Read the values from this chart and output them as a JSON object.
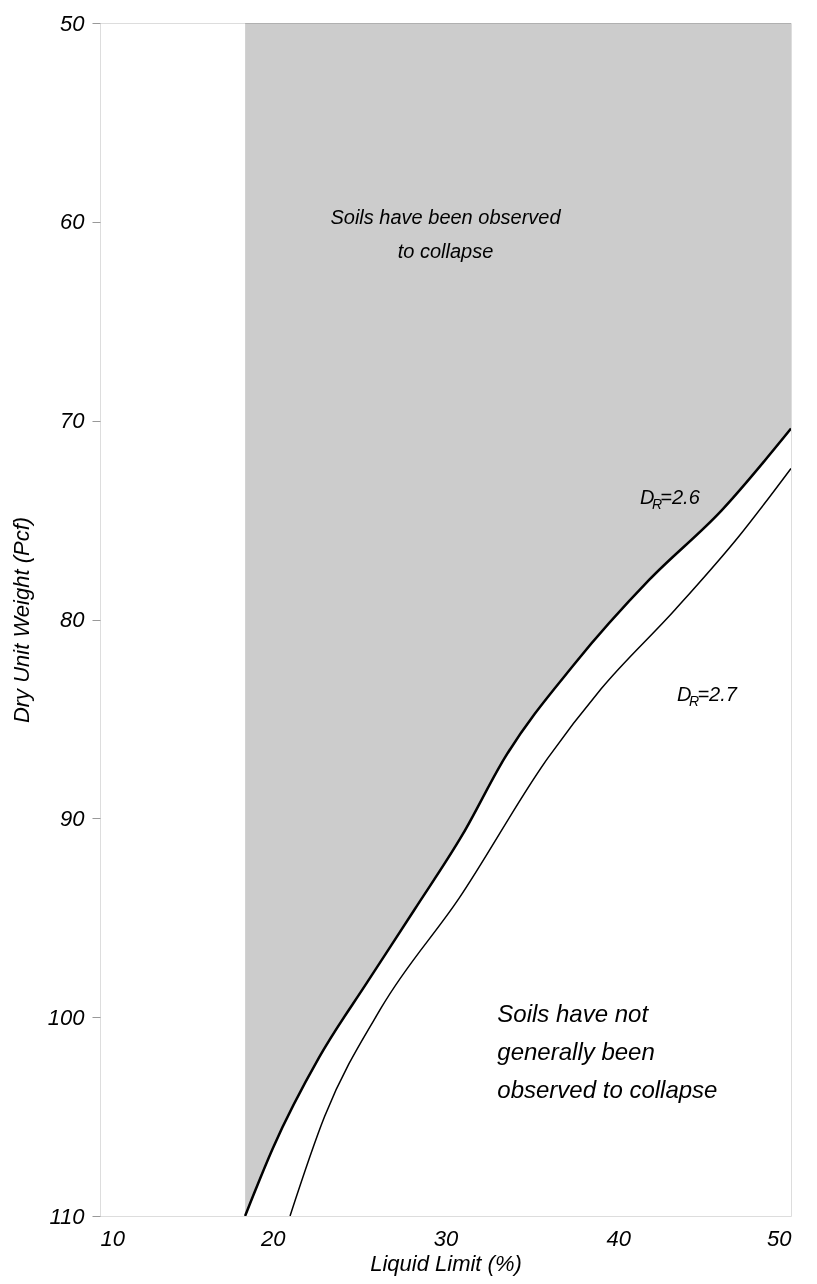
{
  "chart_data": {
    "type": "line",
    "xlabel": "Liquid Limit (%)",
    "ylabel": "Dry Unit Weight (Pcf)",
    "xlim": [
      10,
      50
    ],
    "xticks": [
      10,
      20,
      30,
      40,
      50
    ],
    "ylim": [
      110,
      50
    ],
    "yticks": [
      50,
      60,
      70,
      80,
      90,
      100,
      110
    ],
    "grid": false,
    "marker": "none",
    "line_style": "solid",
    "series": [
      {
        "name": "D$_{R}$=2.6",
        "type": "area",
        "color": "#000000",
        "x": [
          18.4,
          20,
          22.7,
          25.5,
          28.2,
          31,
          33.4,
          37.5,
          41.8,
          46,
          50
        ],
        "values": [
          110,
          106.6,
          102,
          98.2,
          94.6,
          90.8,
          87.0,
          82.2,
          78.0,
          74.5,
          70.4
        ]
      },
      {
        "name": "D$_{R}$=2.7",
        "type": "line",
        "color": "#000000",
        "x": [
          21.0,
          23,
          26.3,
          30.8,
          35.9,
          39.0,
          43.3,
          47,
          50
        ],
        "values": [
          110,
          105,
          99.5,
          94.0,
          87.0,
          83.5,
          79.5,
          75.8,
          72.4
        ]
      }
    ],
    "annotations": [
      "Soils have been observed\nto collapse",
      "Soils have not\ngenerally been\nobserved to collapse"
    ]
  }
}
